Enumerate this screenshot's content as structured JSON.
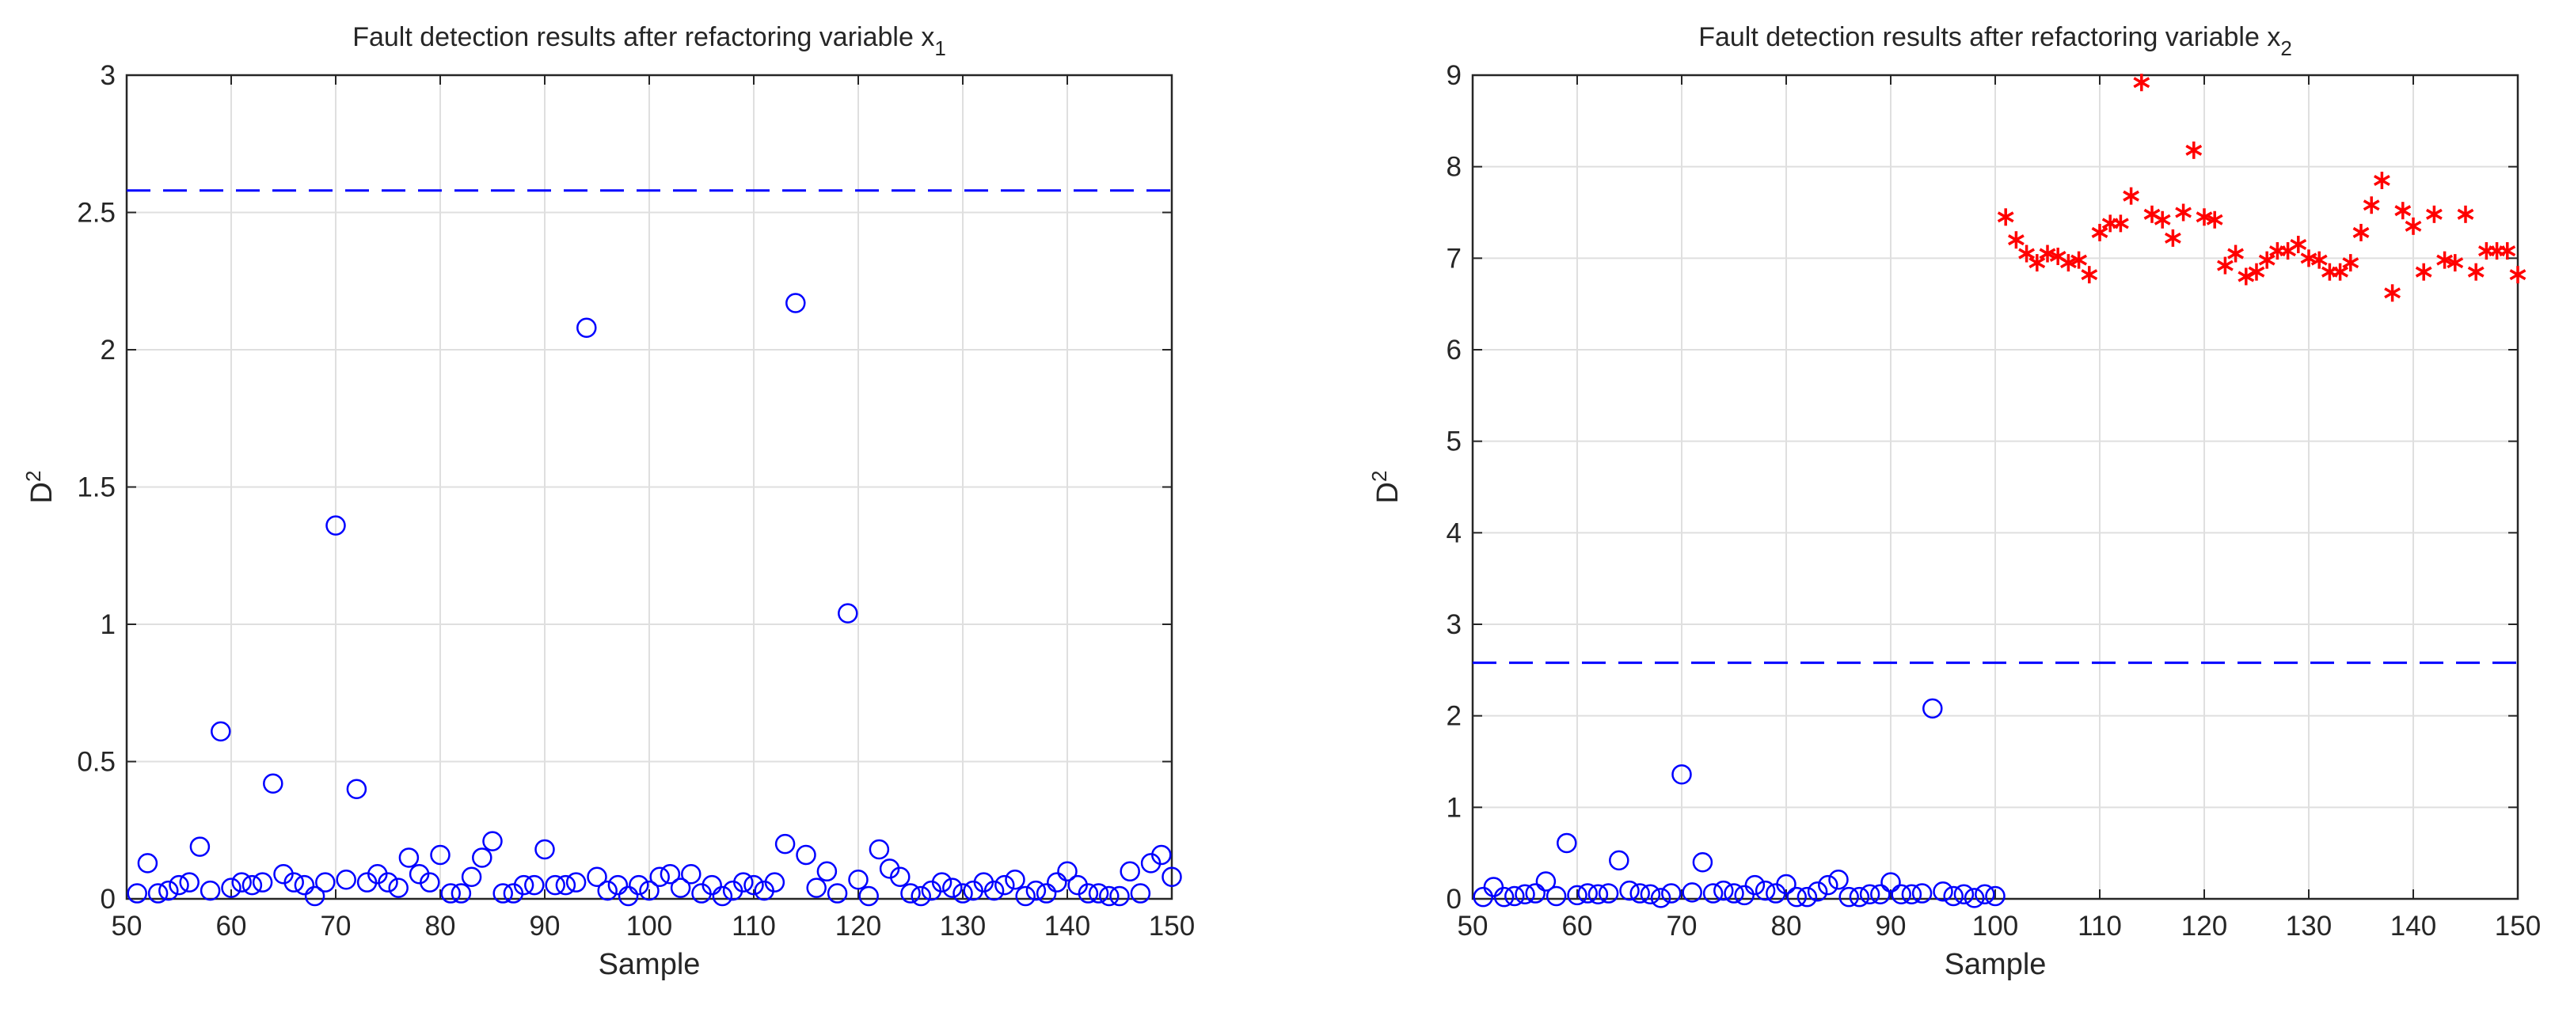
{
  "chart_data": [
    {
      "type": "scatter",
      "title": "Fault detection results after refactoring variable x",
      "title_subscript": "1",
      "xlabel": "Sample",
      "ylabel": "D",
      "ylabel_superscript": "2",
      "xlim": [
        50,
        150
      ],
      "ylim": [
        0,
        3
      ],
      "xticks": [
        "50",
        "60",
        "70",
        "80",
        "90",
        "100",
        "110",
        "120",
        "130",
        "140",
        "150"
      ],
      "yticks": [
        "0",
        "0.5",
        "1",
        "1.5",
        "2",
        "2.5",
        "3"
      ],
      "xtick_values": [
        50,
        60,
        70,
        80,
        90,
        100,
        110,
        120,
        130,
        140,
        150
      ],
      "ytick_values": [
        0,
        0.5,
        1,
        1.5,
        2,
        2.5,
        3
      ],
      "grid": true,
      "threshold": {
        "value": 2.58,
        "style": "dashed",
        "color": "#0000ff"
      },
      "series": [
        {
          "marker": "circle",
          "color": "#0000ff",
          "x": [
            51,
            52,
            53,
            54,
            55,
            56,
            57,
            58,
            59,
            60,
            61,
            62,
            63,
            64,
            65,
            66,
            67,
            68,
            69,
            70,
            71,
            72,
            73,
            74,
            75,
            76,
            77,
            78,
            79,
            80,
            81,
            82,
            83,
            84,
            85,
            86,
            87,
            88,
            89,
            90,
            91,
            92,
            93,
            94,
            95,
            96,
            97,
            98,
            99,
            100,
            101,
            102,
            103,
            104,
            105,
            106,
            107,
            108,
            109,
            110,
            111,
            112,
            113,
            114,
            115,
            116,
            117,
            118,
            119,
            120,
            121,
            122,
            123,
            124,
            125,
            126,
            127,
            128,
            129,
            130,
            131,
            132,
            133,
            134,
            135,
            136,
            137,
            138,
            139,
            140,
            141,
            142,
            143,
            144,
            145,
            146,
            147,
            148,
            149,
            150
          ],
          "y": [
            0.02,
            0.13,
            0.02,
            0.03,
            0.05,
            0.06,
            0.19,
            0.03,
            0.61,
            0.04,
            0.06,
            0.05,
            0.06,
            0.42,
            0.09,
            0.06,
            0.05,
            0.01,
            0.06,
            1.36,
            0.07,
            0.4,
            0.06,
            0.09,
            0.06,
            0.04,
            0.15,
            0.09,
            0.06,
            0.16,
            0.02,
            0.02,
            0.08,
            0.15,
            0.21,
            0.02,
            0.02,
            0.05,
            0.05,
            0.18,
            0.05,
            0.05,
            0.06,
            2.08,
            0.08,
            0.03,
            0.05,
            0.01,
            0.05,
            0.03,
            0.08,
            0.09,
            0.04,
            0.09,
            0.02,
            0.05,
            0.01,
            0.03,
            0.06,
            0.05,
            0.03,
            0.06,
            0.2,
            2.17,
            0.16,
            0.04,
            0.1,
            0.02,
            1.04,
            0.07,
            0.01,
            0.18,
            0.11,
            0.08,
            0.02,
            0.01,
            0.03,
            0.06,
            0.04,
            0.02,
            0.03,
            0.06,
            0.03,
            0.05,
            0.07,
            0.01,
            0.03,
            0.02,
            0.06,
            0.1,
            0.05,
            0.02,
            0.02,
            0.01,
            0.01,
            0.1,
            0.02,
            0.13,
            0.16,
            0.08
          ]
        }
      ]
    },
    {
      "type": "scatter",
      "title": "Fault detection results after refactoring variable x",
      "title_subscript": "2",
      "xlabel": "Sample",
      "ylabel": "D",
      "ylabel_superscript": "2",
      "xlim": [
        50,
        150
      ],
      "ylim": [
        0,
        9
      ],
      "xticks": [
        "50",
        "60",
        "70",
        "80",
        "90",
        "100",
        "110",
        "120",
        "130",
        "140",
        "150"
      ],
      "yticks": [
        "0",
        "1",
        "2",
        "3",
        "4",
        "5",
        "6",
        "7",
        "8",
        "9"
      ],
      "xtick_values": [
        50,
        60,
        70,
        80,
        90,
        100,
        110,
        120,
        130,
        140,
        150
      ],
      "ytick_values": [
        0,
        1,
        2,
        3,
        4,
        5,
        6,
        7,
        8,
        9
      ],
      "grid": true,
      "threshold": {
        "value": 2.58,
        "style": "dashed",
        "color": "#0000ff"
      },
      "series": [
        {
          "marker": "circle",
          "color": "#0000ff",
          "x": [
            51,
            52,
            53,
            54,
            55,
            56,
            57,
            58,
            59,
            60,
            61,
            62,
            63,
            64,
            65,
            66,
            67,
            68,
            69,
            70,
            71,
            72,
            73,
            74,
            75,
            76,
            77,
            78,
            79,
            80,
            81,
            82,
            83,
            84,
            85,
            86,
            87,
            88,
            89,
            90,
            91,
            92,
            93,
            94,
            95,
            96,
            97,
            98,
            99,
            100
          ],
          "y": [
            0.02,
            0.13,
            0.02,
            0.03,
            0.05,
            0.06,
            0.19,
            0.03,
            0.61,
            0.04,
            0.06,
            0.05,
            0.06,
            0.42,
            0.09,
            0.06,
            0.05,
            0.01,
            0.06,
            1.36,
            0.07,
            0.4,
            0.06,
            0.09,
            0.06,
            0.04,
            0.15,
            0.09,
            0.06,
            0.16,
            0.02,
            0.02,
            0.08,
            0.15,
            0.21,
            0.02,
            0.02,
            0.05,
            0.05,
            0.18,
            0.05,
            0.05,
            0.06,
            2.08,
            0.08,
            0.03,
            0.05,
            0.01,
            0.05,
            0.03
          ]
        },
        {
          "marker": "asterisk",
          "color": "#ff0000",
          "x": [
            101,
            102,
            103,
            104,
            105,
            106,
            107,
            108,
            109,
            110,
            111,
            112,
            113,
            114,
            115,
            116,
            117,
            118,
            119,
            120,
            121,
            122,
            123,
            124,
            125,
            126,
            127,
            128,
            129,
            130,
            131,
            132,
            133,
            134,
            135,
            136,
            137,
            138,
            139,
            140,
            141,
            142,
            143,
            144,
            145,
            146,
            147,
            148,
            149,
            150
          ],
          "y": [
            7.45,
            7.2,
            7.05,
            6.95,
            7.05,
            7.02,
            6.95,
            6.98,
            6.82,
            7.28,
            7.38,
            7.38,
            7.68,
            8.92,
            7.48,
            7.42,
            7.22,
            7.5,
            8.18,
            7.45,
            7.42,
            6.92,
            7.05,
            6.8,
            6.85,
            6.98,
            7.08,
            7.08,
            7.15,
            7.0,
            6.98,
            6.85,
            6.85,
            6.95,
            7.28,
            7.58,
            7.85,
            6.62,
            7.52,
            7.35,
            6.85,
            7.48,
            6.98,
            6.95,
            7.48,
            6.85,
            7.08,
            7.08,
            7.08,
            6.82
          ]
        }
      ]
    }
  ]
}
